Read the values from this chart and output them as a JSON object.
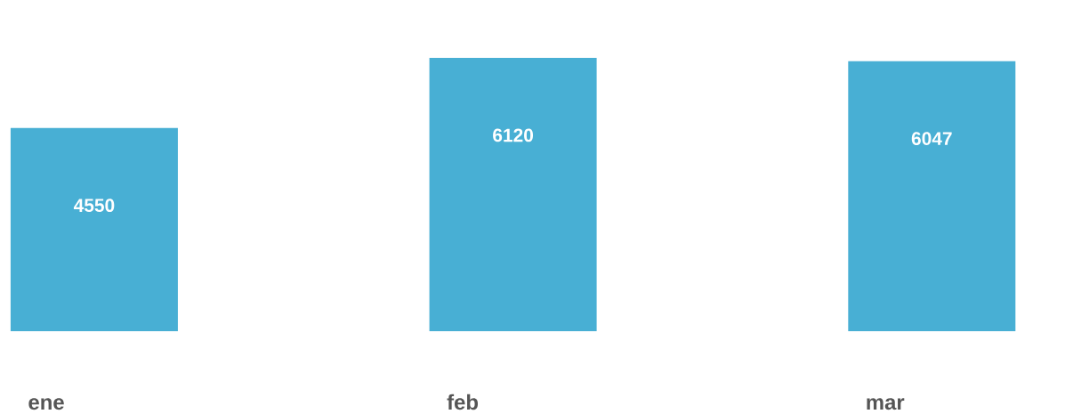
{
  "chart_data": {
    "type": "bar",
    "categories": [
      "ene",
      "feb",
      "mar"
    ],
    "values": [
      4550,
      6120,
      6047
    ],
    "color": "#48afd4",
    "data_labels": true
  }
}
